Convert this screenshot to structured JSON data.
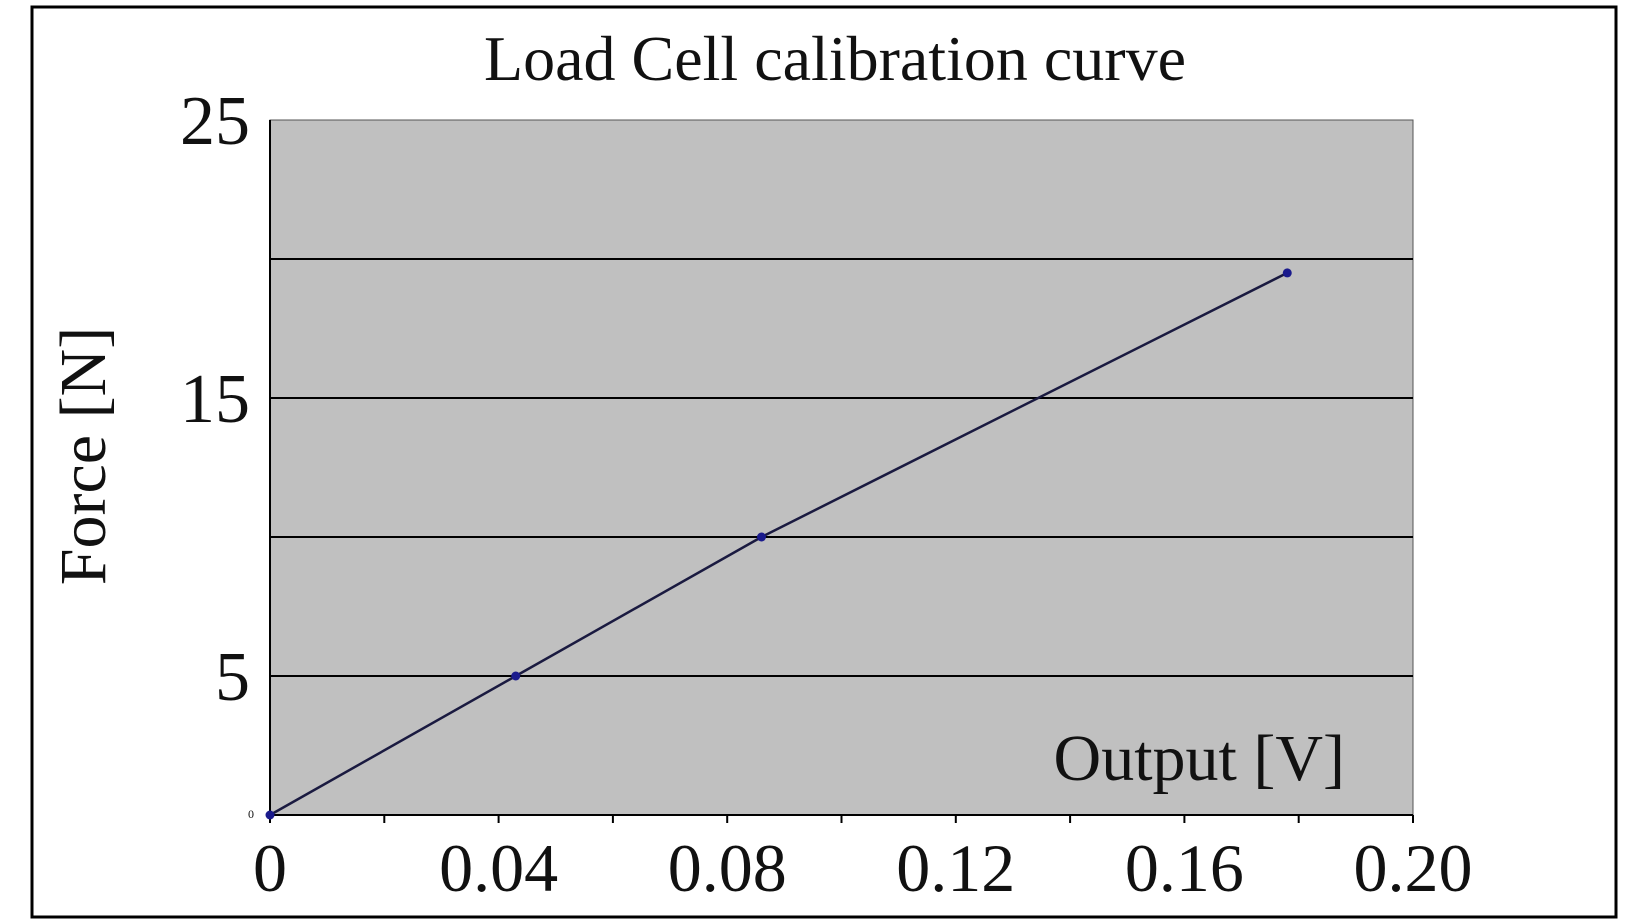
{
  "chart_data": {
    "type": "line",
    "title": "Load Cell calibration curve",
    "xlabel": "Output [V]",
    "ylabel": "Force [N]",
    "xlim": [
      0,
      0.2
    ],
    "ylim": [
      0,
      25
    ],
    "x_ticks": [
      0,
      0.04,
      0.08,
      0.12,
      0.16,
      0.2
    ],
    "x_tick_labels": [
      "0",
      "0.04",
      "0.08",
      "0.12",
      "0.16",
      "0.20"
    ],
    "y_ticks": [
      5,
      15,
      25
    ],
    "y_tick_labels": [
      "5",
      "15",
      "25"
    ],
    "y_gridlines": [
      5,
      10,
      15,
      20
    ],
    "origin_label": "0",
    "grid": true,
    "plot_background": "#c0c0c0",
    "line_color": "#1a1a40",
    "marker_color": "#1a1a8c",
    "series": [
      {
        "x": [
          0,
          0.043,
          0.086,
          0.178
        ],
        "y": [
          0,
          5,
          10,
          19.5
        ]
      }
    ]
  }
}
